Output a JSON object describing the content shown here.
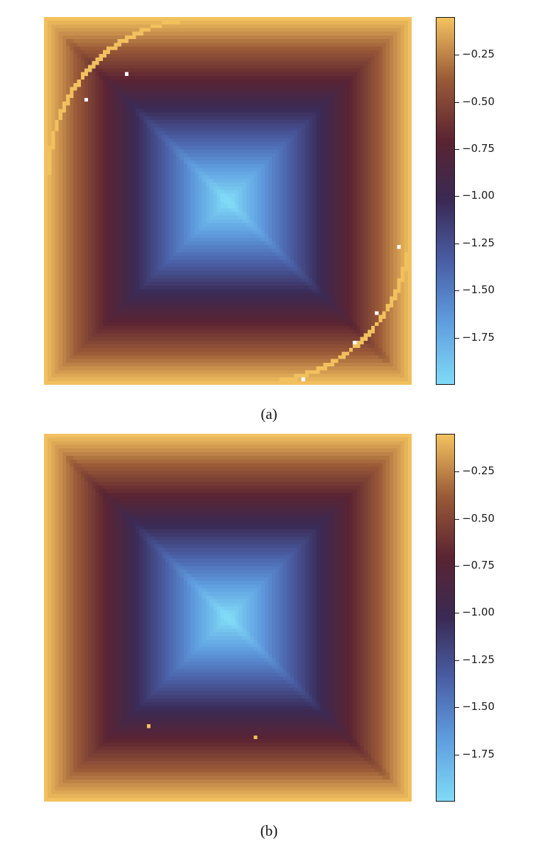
{
  "chart_data": [
    {
      "type": "heatmap",
      "caption": "(a)",
      "grid_size": 100,
      "colorbar": {
        "min": -2.0,
        "max": -0.05,
        "ticks": [
          -0.25,
          -0.5,
          -0.75,
          -1.0,
          -1.25,
          -1.5,
          -1.75
        ],
        "tick_labels": [
          "−0.25",
          "−0.50",
          "−0.75",
          "−1.00",
          "−1.25",
          "−1.50",
          "−1.75"
        ]
      },
      "colormap": [
        "#80daf6",
        "#5f9ee0",
        "#4a5fa6",
        "#3a2a55",
        "#5b2432",
        "#9a5a37",
        "#f2c15f"
      ],
      "field": "value = -2 * min(distance to nearest boundary) / 50, pyramid shape; lowest at center",
      "highlight_cells_color": "#f2c15f",
      "outlier_cells": "circular arc of high-value cells, centered near (0, 0) grid corner offset, passing from top edge to left edge and from right edge to bottom edge",
      "white_cells": [
        [
          22,
          15
        ],
        [
          11,
          22
        ],
        [
          70,
          98
        ],
        [
          96,
          62
        ],
        [
          90,
          80
        ],
        [
          84,
          88
        ]
      ]
    },
    {
      "type": "heatmap",
      "caption": "(b)",
      "grid_size": 100,
      "colorbar": {
        "min": -2.0,
        "max": -0.05,
        "ticks": [
          -0.25,
          -0.5,
          -0.75,
          -1.0,
          -1.25,
          -1.5,
          -1.75
        ],
        "tick_labels": [
          "−0.25",
          "−0.50",
          "−0.75",
          "−1.00",
          "−1.25",
          "−1.50",
          "−1.75"
        ]
      },
      "colormap": [
        "#80daf6",
        "#5f9ee0",
        "#4a5fa6",
        "#3a2a55",
        "#5b2432",
        "#9a5a37",
        "#f2c15f"
      ],
      "outlier_cells_list": [
        [
          28,
          79
        ],
        [
          57,
          82
        ]
      ]
    }
  ]
}
